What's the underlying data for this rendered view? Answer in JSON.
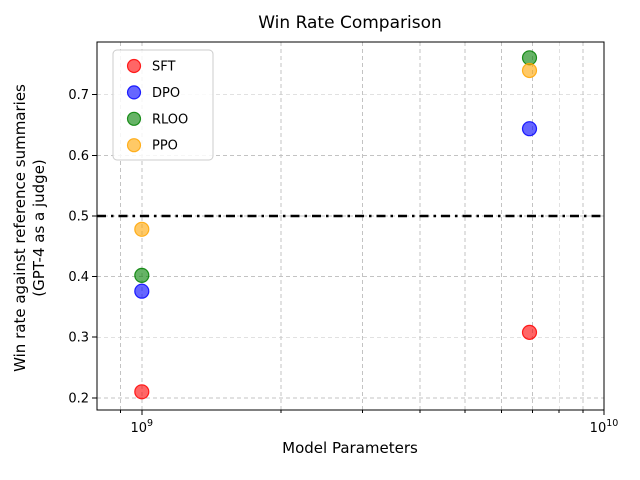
{
  "chart_data": {
    "type": "scatter",
    "title": "Win Rate Comparison",
    "xlabel": "Model Parameters",
    "ylabel": [
      "Win rate against reference summaries",
      "(GPT-4 as a judge)"
    ],
    "x_scale": "log",
    "xlim": [
      800000000.0,
      10000000000.0
    ],
    "ylim": [
      0.18,
      0.787
    ],
    "grid": true,
    "grid_color": "#c3c3c3",
    "axis_color": "#000000",
    "background": "#ffffff",
    "x_major_ticks": [
      {
        "value": 1000000000.0,
        "mantissa": "10",
        "exponent": "9"
      },
      {
        "value": 10000000000.0,
        "mantissa": "10",
        "exponent": "10"
      }
    ],
    "x_minor_ticks": [
      900000000.0,
      2000000000.0,
      3000000000.0,
      4000000000.0,
      5000000000.0,
      6000000000.0,
      7000000000.0,
      8000000000.0,
      9000000000.0
    ],
    "y_ticks": [
      {
        "value": 0.2,
        "label": "0.2"
      },
      {
        "value": 0.3,
        "label": "0.3"
      },
      {
        "value": 0.4,
        "label": "0.4"
      },
      {
        "value": 0.5,
        "label": "0.5"
      },
      {
        "value": 0.6,
        "label": "0.6"
      },
      {
        "value": 0.7,
        "label": "0.7"
      }
    ],
    "reference_line": {
      "y": 0.5,
      "color": "#000000",
      "style": "dash-dot"
    },
    "marker_alpha": 0.6,
    "marker_size_px": 14,
    "series": [
      {
        "name": "SFT",
        "color": "#ff0000",
        "x": [
          1000000000.0,
          6900000000.0
        ],
        "y": [
          0.21,
          0.308
        ]
      },
      {
        "name": "DPO",
        "color": "#0000ff",
        "x": [
          1000000000.0,
          6900000000.0
        ],
        "y": [
          0.376,
          0.644
        ]
      },
      {
        "name": "RLOO",
        "color": "#008000",
        "x": [
          1000000000.0,
          6900000000.0
        ],
        "y": [
          0.402,
          0.761
        ]
      },
      {
        "name": "PPO",
        "color": "#ffa500",
        "x": [
          1000000000.0,
          6900000000.0
        ],
        "y": [
          0.478,
          0.74
        ]
      }
    ],
    "legend": {
      "position": "upper-left"
    }
  }
}
